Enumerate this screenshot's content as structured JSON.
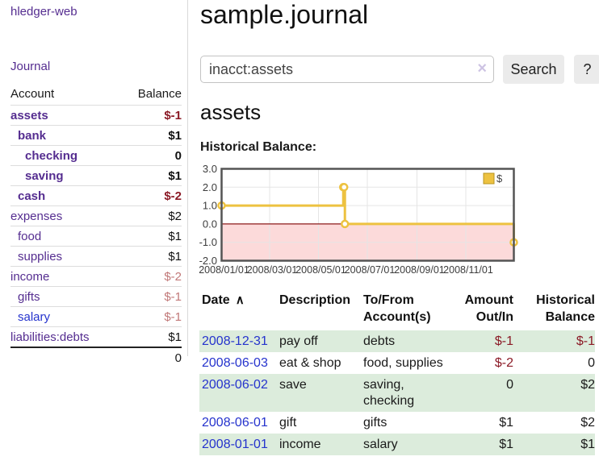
{
  "sidebar": {
    "brand": "hledger-web",
    "nav_journal": "Journal",
    "accounts_header": {
      "account": "Account",
      "balance": "Balance"
    },
    "accounts": [
      {
        "name": "assets",
        "indent": 1,
        "bold": true,
        "balance": "$-1",
        "balance_class": "neg-strong",
        "link_class": ""
      },
      {
        "name": "bank",
        "indent": 2,
        "bold": true,
        "balance": "$1",
        "balance_class": "",
        "link_class": ""
      },
      {
        "name": "checking",
        "indent": 3,
        "bold": true,
        "balance": "0",
        "balance_class": "",
        "link_class": ""
      },
      {
        "name": "saving",
        "indent": 3,
        "bold": true,
        "balance": "$1",
        "balance_class": "",
        "link_class": ""
      },
      {
        "name": "cash",
        "indent": 2,
        "bold": true,
        "balance": "$-2",
        "balance_class": "neg-strong",
        "link_class": ""
      },
      {
        "name": "expenses",
        "indent": 1,
        "bold": false,
        "balance": "$2",
        "balance_class": "",
        "link_class": ""
      },
      {
        "name": "food",
        "indent": 2,
        "bold": false,
        "balance": "$1",
        "balance_class": "",
        "link_class": ""
      },
      {
        "name": "supplies",
        "indent": 2,
        "bold": false,
        "balance": "$1",
        "balance_class": "",
        "link_class": ""
      },
      {
        "name": "income",
        "indent": 1,
        "bold": false,
        "balance": "$-2",
        "balance_class": "neg-light",
        "link_class": ""
      },
      {
        "name": "gifts",
        "indent": 2,
        "bold": false,
        "balance": "$-1",
        "balance_class": "neg-light",
        "link_class": ""
      },
      {
        "name": "salary",
        "indent": 2,
        "bold": false,
        "balance": "$-1",
        "balance_class": "neg-light",
        "link_class": "blue"
      },
      {
        "name": "liabilities:debts",
        "indent": 1,
        "bold": false,
        "balance": "$1",
        "balance_class": "",
        "link_class": ""
      }
    ],
    "total": "0"
  },
  "header": {
    "title": "sample.journal"
  },
  "search": {
    "value": "inacct:assets",
    "clear_icon": "×",
    "button": "Search",
    "help_button": "?"
  },
  "account_page": {
    "title": "assets",
    "chart_label": "Historical Balance:"
  },
  "chart_data": {
    "type": "line",
    "step": true,
    "title": "Historical Balance",
    "legend_label": "$",
    "legend_position": "top-right",
    "grid": true,
    "ylim": [
      -2,
      3
    ],
    "y_ticks": [
      "3.0",
      "2.0",
      "1.0",
      "0.0",
      "-1.0",
      "-2.0"
    ],
    "y_tick_values": [
      3,
      2,
      1,
      0,
      -1,
      -2
    ],
    "x_tick_labels": [
      "2008/01/01",
      "2008/03/01",
      "2008/05/01",
      "2008/07/01",
      "2008/09/01",
      "2008/11/01"
    ],
    "x_tick_days": [
      0,
      60,
      121,
      182,
      244,
      305
    ],
    "x_range_days": 365,
    "points": [
      {
        "date": "2008-01-01",
        "day": 0,
        "value": 1
      },
      {
        "date": "2008-06-01",
        "day": 152,
        "value": 2
      },
      {
        "date": "2008-06-02",
        "day": 153,
        "value": 2
      },
      {
        "date": "2008-06-03",
        "day": 154,
        "value": 0
      },
      {
        "date": "2008-12-31",
        "day": 365,
        "value": -1
      }
    ],
    "line_color": "#edc240",
    "negative_fill": "#fcdada",
    "zero_line_color": "#8b1a1a",
    "grid_color": "#e5e5e5",
    "border_color": "#545454"
  },
  "register": {
    "headers": {
      "date": "Date",
      "sort_icon": "∧",
      "description": "Description",
      "accounts": "To/From Account(s)",
      "amount": "Amount Out/In",
      "balance": "Historical Balance"
    },
    "rows": [
      {
        "date": "2008-12-31",
        "description": "pay off",
        "accounts": "debts",
        "amount": "$-1",
        "amount_neg": true,
        "balance": "$-1",
        "balance_neg": true,
        "highlight": true
      },
      {
        "date": "2008-06-03",
        "description": "eat & shop",
        "accounts": "food, supplies",
        "amount": "$-2",
        "amount_neg": true,
        "balance": "0",
        "balance_neg": false,
        "highlight": false
      },
      {
        "date": "2008-06-02",
        "description": "save",
        "accounts": "saving, checking",
        "amount": "0",
        "amount_neg": false,
        "balance": "$2",
        "balance_neg": false,
        "highlight": true
      },
      {
        "date": "2008-06-01",
        "description": "gift",
        "accounts": "gifts",
        "amount": "$1",
        "amount_neg": false,
        "balance": "$2",
        "balance_neg": false,
        "highlight": false
      },
      {
        "date": "2008-01-01",
        "description": "income",
        "accounts": "salary",
        "amount": "$1",
        "amount_neg": false,
        "balance": "$1",
        "balance_neg": false,
        "highlight": true
      }
    ]
  }
}
